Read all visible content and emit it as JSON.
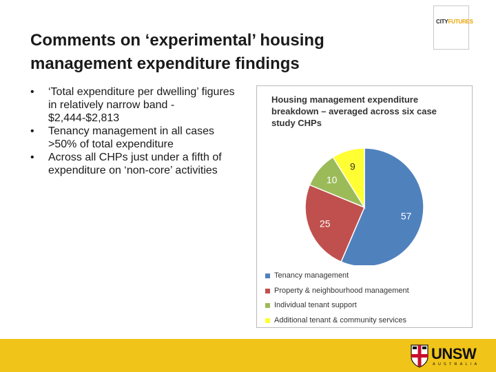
{
  "slide": {
    "title": "Comments on ‘experimental’ housing management expenditure findings",
    "bullets": [
      "‘Total expenditure per dwelling’ figures in relatively narrow band - $2,444-$2,813",
      "Tenancy management in all cases >50% of total expenditure",
      "Across all CHPs just under a fifth of expenditure on ‘non-core’ activities"
    ],
    "bullet_symbol": "•"
  },
  "logos": {
    "cityfutures_prefix": "CITY",
    "cityfutures_suffix": "FUTURES",
    "unsw": "UNSW",
    "unsw_sub": "AUSTRALIA"
  },
  "chart_data": {
    "type": "pie",
    "title": "Housing management expenditure breakdown – averaged across six case study CHPs",
    "slices": [
      {
        "label": "Tenancy management",
        "value": 57,
        "color": "#4f81bd"
      },
      {
        "label": "Property & neighbourhood management",
        "value": 25,
        "color": "#c0504d"
      },
      {
        "label": "Individual tenant support",
        "value": 10,
        "color": "#9bbb59"
      },
      {
        "label": "Additional tenant & community services",
        "value": 9,
        "color": "#ffff33"
      }
    ],
    "legend_position": "bottom"
  },
  "colors": {
    "footer": "#f0c419",
    "accent": "#e8a400"
  }
}
